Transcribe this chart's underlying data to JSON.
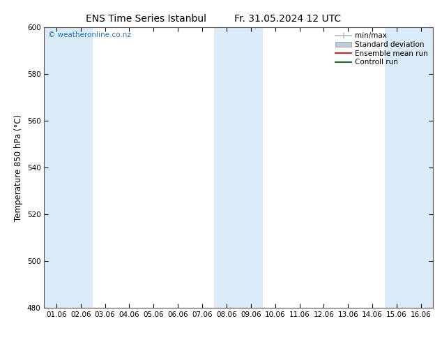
{
  "title_left": "ENS Time Series Istanbul",
  "title_right": "Fr. 31.05.2024 12 UTC",
  "ylabel": "Temperature 850 hPa (°C)",
  "ylim": [
    480,
    600
  ],
  "yticks": [
    480,
    500,
    520,
    540,
    560,
    580,
    600
  ],
  "x_labels": [
    "01.06",
    "02.06",
    "03.06",
    "04.06",
    "05.06",
    "06.06",
    "07.06",
    "08.06",
    "09.06",
    "10.06",
    "11.06",
    "12.06",
    "13.06",
    "14.06",
    "15.06",
    "16.06"
  ],
  "n_ticks": 16,
  "shaded_indices": [
    0,
    1,
    7,
    8,
    14,
    15
  ],
  "band_color": "#daeaf7",
  "watermark": "© weatheronline.co.nz",
  "watermark_color": "#2277cc",
  "legend_items": [
    {
      "label": "min/max",
      "color": "#aabbcc",
      "type": "errorbar"
    },
    {
      "label": "Standard deviation",
      "color": "#bbccdd",
      "type": "band"
    },
    {
      "label": "Ensemble mean run",
      "color": "#dd2222",
      "type": "line"
    },
    {
      "label": "Controll run",
      "color": "#226622",
      "type": "line"
    }
  ],
  "bg_color": "#ffffff",
  "axes_color": "#333333",
  "title_fontsize": 10,
  "tick_fontsize": 7.5,
  "ylabel_fontsize": 8.5,
  "legend_fontsize": 7.5
}
